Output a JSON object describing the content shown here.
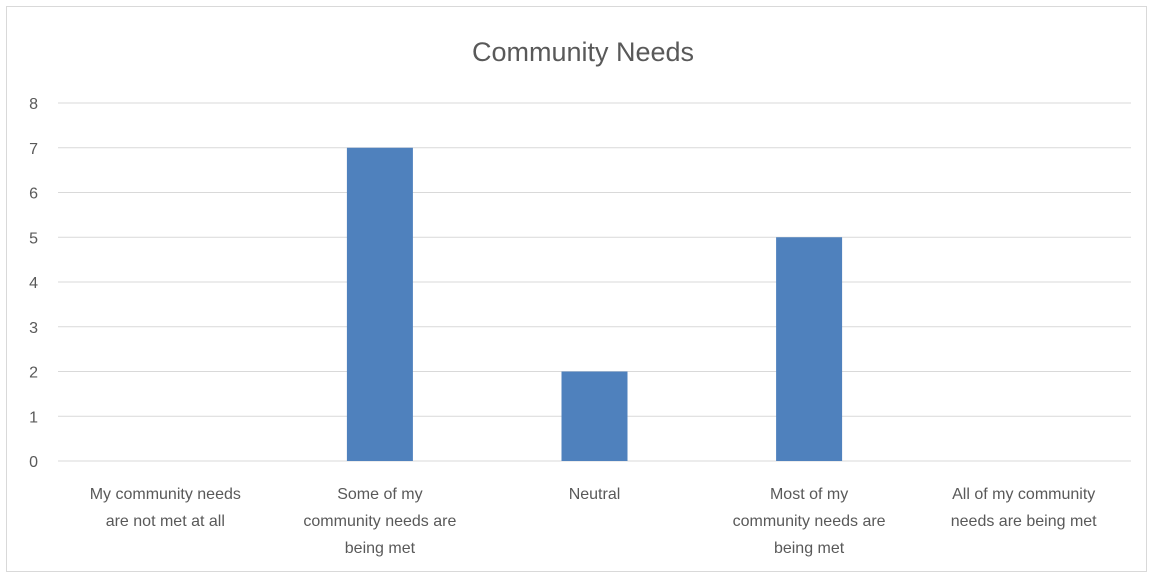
{
  "chart_data": {
    "type": "bar",
    "title": "Community Needs",
    "xlabel": "",
    "ylabel": "",
    "categories": [
      "My community needs are not met at all",
      "Some of my community needs are being met",
      "Neutral",
      "Most of my community needs are being met",
      "All of my community needs are being met"
    ],
    "category_label_lines": [
      [
        "My community needs",
        "are not met at all"
      ],
      [
        "Some of my",
        "community needs are",
        "being met"
      ],
      [
        "Neutral"
      ],
      [
        "Most of my",
        "community needs are",
        "being met"
      ],
      [
        "All of my community",
        "needs are being met"
      ]
    ],
    "values": [
      0,
      7,
      2,
      5,
      0
    ],
    "ylim": [
      0,
      8
    ],
    "yticks": [
      0,
      1,
      2,
      3,
      4,
      5,
      6,
      7,
      8
    ],
    "grid": true,
    "legend": "none",
    "colors": {
      "bar": "#4f81bd",
      "grid": "#d9d9d9",
      "text": "#595959",
      "border": "#d9d9d9"
    }
  }
}
